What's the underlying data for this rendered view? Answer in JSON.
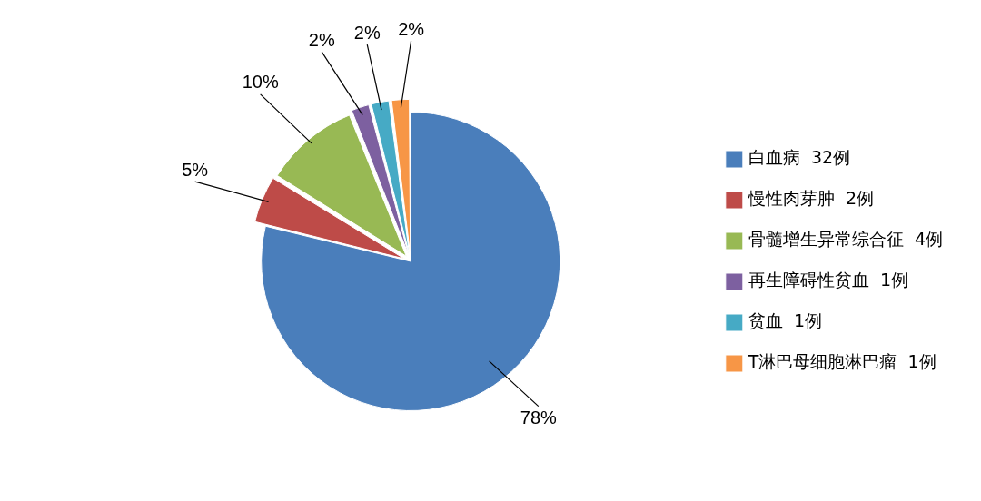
{
  "chart_data": {
    "type": "pie",
    "categories": [
      "白血病  32例",
      "慢性肉芽肿  2例",
      "骨髓增生异常综合征  4例",
      "再生障碍性贫血  1例",
      "贫血  1例",
      "T淋巴母细胞淋巴瘤  1例"
    ],
    "values": [
      78,
      5,
      10,
      2,
      2,
      2
    ],
    "colors": [
      "#4a7ebb",
      "#be4b48",
      "#98b954",
      "#7d60a0",
      "#46aac5",
      "#f79646"
    ],
    "value_labels": [
      "78%",
      "5%",
      "10%",
      "2%",
      "2%",
      "2%"
    ],
    "legend": "right"
  }
}
